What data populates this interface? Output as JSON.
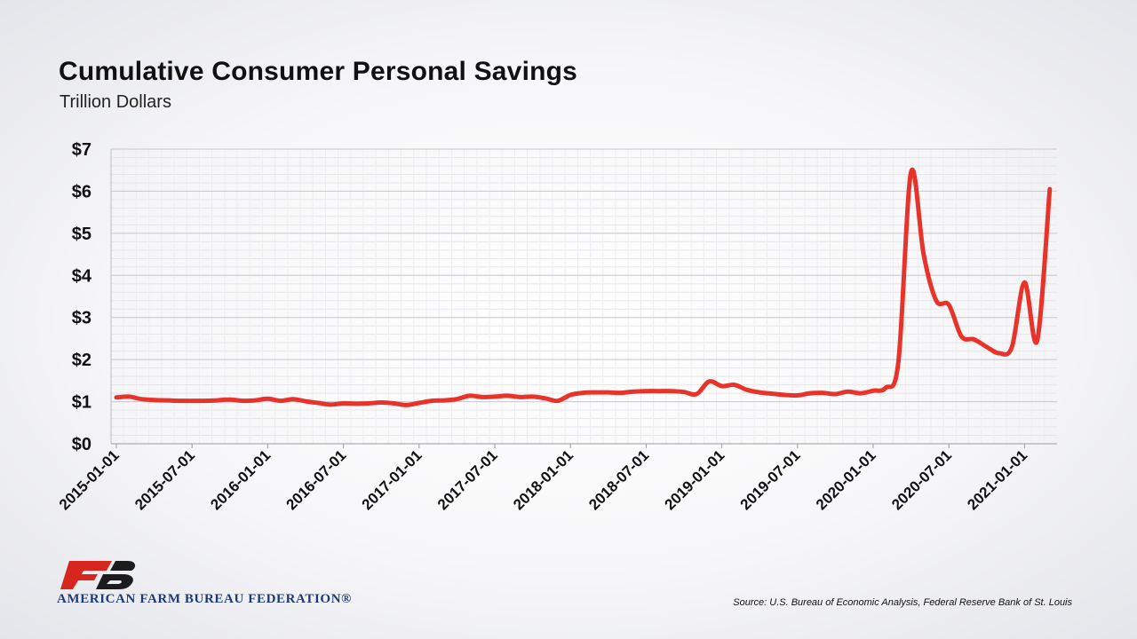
{
  "header": {
    "title": "Cumulative Consumer Personal Savings",
    "subtitle": "Trillion Dollars"
  },
  "footer": {
    "org_name": "AMERICAN FARM BUREAU FEDERATION®",
    "source": "Source: U.S. Bureau of Economic Analysis, Federal Reserve Bank of St. Louis"
  },
  "chart_data": {
    "type": "line",
    "title": "Cumulative Consumer Personal Savings",
    "ylabel": "Trillion Dollars",
    "xlabel": "",
    "ylim": [
      0,
      7
    ],
    "yticks": [
      0,
      1,
      2,
      3,
      4,
      5,
      6,
      7
    ],
    "ytick_labels": [
      "$0",
      "$1",
      "$2",
      "$3",
      "$4",
      "$5",
      "$6",
      "$7"
    ],
    "xtick_labels": [
      "2015-01-01",
      "2015-07-01",
      "2016-01-01",
      "2016-07-01",
      "2017-01-01",
      "2017-07-01",
      "2018-01-01",
      "2018-07-01",
      "2019-01-01",
      "2019-07-01",
      "2020-01-01",
      "2020-07-01",
      "2021-01-01"
    ],
    "grid": true,
    "line_color": "#e8332a",
    "series": [
      {
        "x": [
          "2015-01-01",
          "2015-02-01",
          "2015-03-01",
          "2015-04-01",
          "2015-05-01",
          "2015-06-01",
          "2015-07-01",
          "2015-08-01",
          "2015-09-01",
          "2015-10-01",
          "2015-11-01",
          "2015-12-01",
          "2016-01-01",
          "2016-02-01",
          "2016-03-01",
          "2016-04-01",
          "2016-05-01",
          "2016-06-01",
          "2016-07-01",
          "2016-08-01",
          "2016-09-01",
          "2016-10-01",
          "2016-11-01",
          "2016-12-01",
          "2017-01-01",
          "2017-02-01",
          "2017-03-01",
          "2017-04-01",
          "2017-05-01",
          "2017-06-01",
          "2017-07-01",
          "2017-08-01",
          "2017-09-01",
          "2017-10-01",
          "2017-11-01",
          "2017-12-01",
          "2018-01-01",
          "2018-02-01",
          "2018-03-01",
          "2018-04-01",
          "2018-05-01",
          "2018-06-01",
          "2018-07-01",
          "2018-08-01",
          "2018-09-01",
          "2018-10-01",
          "2018-11-01",
          "2018-12-01",
          "2019-01-01",
          "2019-02-01",
          "2019-03-01",
          "2019-04-01",
          "2019-05-01",
          "2019-06-01",
          "2019-07-01",
          "2019-08-01",
          "2019-09-01",
          "2019-10-01",
          "2019-11-01",
          "2019-12-01",
          "2020-01-01",
          "2020-02-01",
          "2020-03-01",
          "2020-04-01",
          "2020-05-01",
          "2020-06-01",
          "2020-07-01",
          "2020-08-01",
          "2020-09-01",
          "2020-10-01",
          "2020-11-01",
          "2020-12-01",
          "2021-01-01",
          "2021-02-01",
          "2021-03-01"
        ],
        "values": [
          1.1,
          1.12,
          1.06,
          1.04,
          1.03,
          1.02,
          1.02,
          1.02,
          1.03,
          1.05,
          1.02,
          1.03,
          1.07,
          1.02,
          1.06,
          1.01,
          0.97,
          0.93,
          0.96,
          0.95,
          0.96,
          0.98,
          0.96,
          0.92,
          0.97,
          1.02,
          1.03,
          1.06,
          1.14,
          1.11,
          1.12,
          1.14,
          1.11,
          1.12,
          1.08,
          1.02,
          1.16,
          1.21,
          1.22,
          1.22,
          1.21,
          1.24,
          1.25,
          1.25,
          1.25,
          1.23,
          1.18,
          1.48,
          1.37,
          1.4,
          1.28,
          1.22,
          1.19,
          1.16,
          1.15,
          1.2,
          1.21,
          1.18,
          1.24,
          1.2,
          1.26,
          1.33,
          1.95,
          6.45,
          4.5,
          3.4,
          3.3,
          2.55,
          2.48,
          2.3,
          2.15,
          2.3,
          3.83,
          2.45,
          6.05
        ]
      }
    ]
  }
}
